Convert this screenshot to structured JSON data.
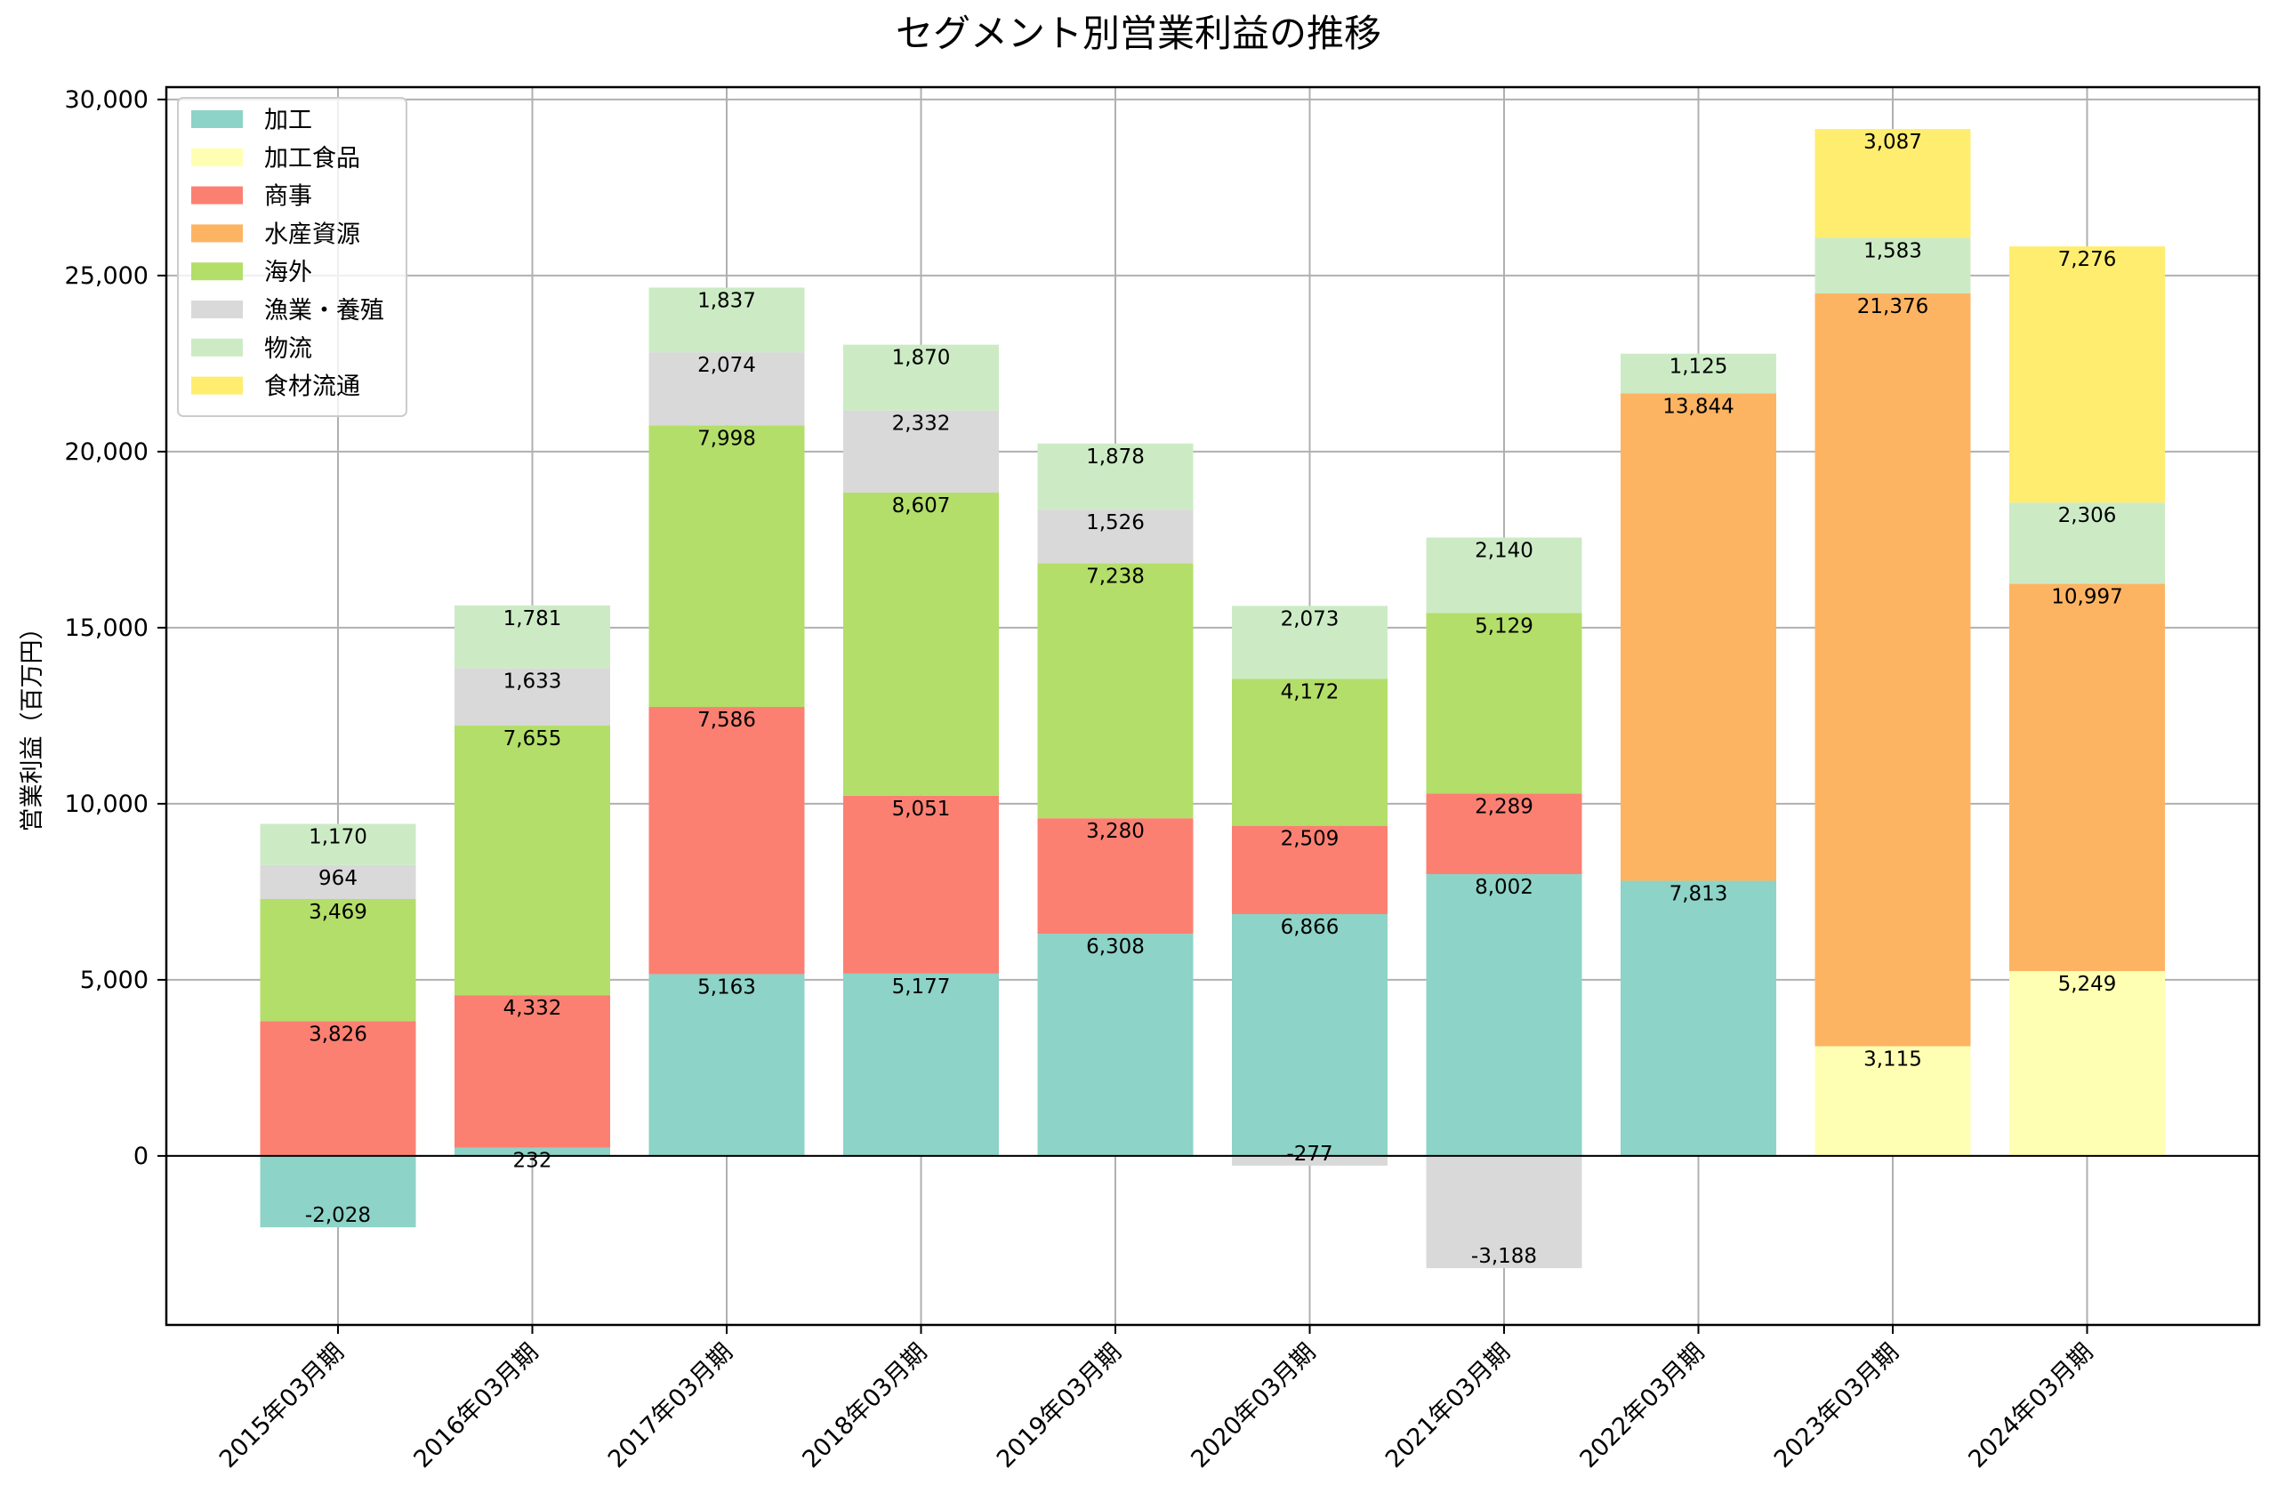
{
  "chart_data": {
    "type": "bar",
    "stacked": true,
    "title": "セグメント別営業利益の推移",
    "xlabel": "",
    "ylabel": "営業利益（百万円）",
    "ylim": [
      -4800,
      30350
    ],
    "yticks": [
      0,
      5000,
      10000,
      15000,
      20000,
      25000,
      30000
    ],
    "ytick_labels": [
      "0",
      "5,000",
      "10,000",
      "15,000",
      "20,000",
      "25,000",
      "30,000"
    ],
    "grid": true,
    "legend_position": "top-left",
    "categories": [
      "2015年03月期",
      "2016年03月期",
      "2017年03月期",
      "2018年03月期",
      "2019年03月期",
      "2020年03月期",
      "2021年03月期",
      "2022年03月期",
      "2023年03月期",
      "2024年03月期"
    ],
    "series": [
      {
        "name": "加工",
        "color": "#8dd3c7",
        "values": [
          -2028,
          232,
          5163,
          5177,
          6308,
          6866,
          8002,
          7813,
          null,
          null
        ]
      },
      {
        "name": "加工食品",
        "color": "#ffffb3",
        "values": [
          null,
          null,
          null,
          null,
          null,
          null,
          null,
          null,
          3115,
          5249
        ]
      },
      {
        "name": "商事",
        "color": "#fb8072",
        "values": [
          3826,
          4332,
          7586,
          5051,
          3280,
          2509,
          2289,
          null,
          null,
          null
        ]
      },
      {
        "name": "水産資源",
        "color": "#fdb462",
        "values": [
          null,
          null,
          null,
          null,
          null,
          null,
          null,
          13844,
          21376,
          10997
        ]
      },
      {
        "name": "海外",
        "color": "#b3de69",
        "values": [
          3469,
          7655,
          7998,
          8607,
          7238,
          4172,
          5129,
          null,
          null,
          null
        ]
      },
      {
        "name": "漁業・養殖",
        "color": "#d9d9d9",
        "values": [
          964,
          1633,
          2074,
          2332,
          1526,
          -277,
          -3188,
          null,
          null,
          null
        ]
      },
      {
        "name": "物流",
        "color": "#ccebc5",
        "values": [
          1170,
          1781,
          1837,
          1870,
          1878,
          2073,
          2140,
          1125,
          1583,
          2306
        ]
      },
      {
        "name": "食材流通",
        "color": "#ffed6f",
        "values": [
          null,
          null,
          null,
          null,
          null,
          null,
          null,
          null,
          3087,
          7276
        ]
      }
    ]
  }
}
